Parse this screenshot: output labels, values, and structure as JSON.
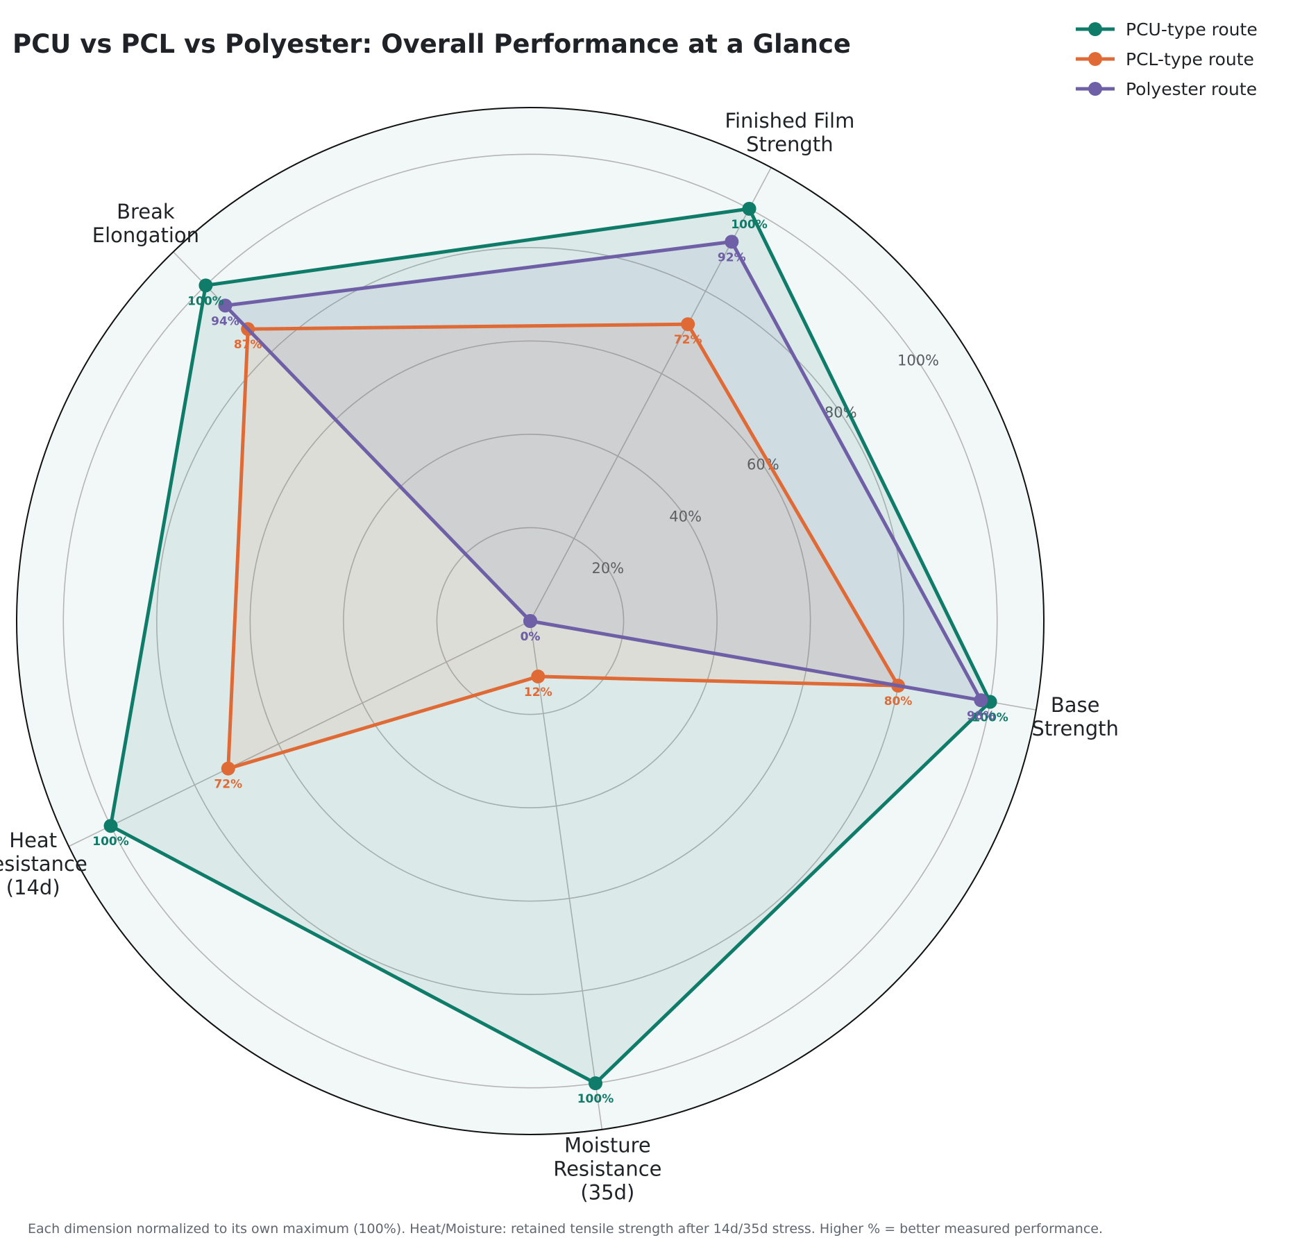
{
  "chart_data": {
    "type": "radar",
    "title": "PCU vs PCL vs Polyester: Overall Performance at a Glance",
    "axes": [
      [
        "Base",
        "Strength"
      ],
      [
        "Finished Film",
        "Strength"
      ],
      [
        "Break",
        "Elongation"
      ],
      [
        "Heat",
        "Resistance",
        "(14d)"
      ],
      [
        "Moisture",
        "Resistance",
        "(35d)"
      ]
    ],
    "rlim": [
      0,
      110
    ],
    "rticks": [
      20,
      40,
      60,
      80,
      100
    ],
    "rtick_labels": [
      "20%",
      "40%",
      "60%",
      "80%",
      "100%"
    ],
    "grid": true,
    "legend_position": "top-right",
    "series": [
      {
        "name": "PCU-type route",
        "color": "#0f7b69",
        "values": [
          100,
          100,
          100,
          100,
          100
        ],
        "labels": [
          "100%",
          "100%",
          "100%",
          "100%",
          "100%"
        ]
      },
      {
        "name": "PCL-type route",
        "color": "#e06a36",
        "values": [
          80,
          72,
          87,
          72,
          12
        ],
        "labels": [
          "80%",
          "72%",
          "87%",
          "72%",
          "12%"
        ]
      },
      {
        "name": "Polyester route",
        "color": "#6f5fa6",
        "values": [
          98,
          92,
          94,
          0,
          0
        ],
        "labels": [
          "98%",
          "92%",
          "94%",
          "0%",
          "0%"
        ]
      }
    ],
    "footnote": "Each dimension normalized to its own maximum (100%). Heat/Moisture: retained tensile strength after 14d/35d stress. Higher % = better measured performance."
  }
}
